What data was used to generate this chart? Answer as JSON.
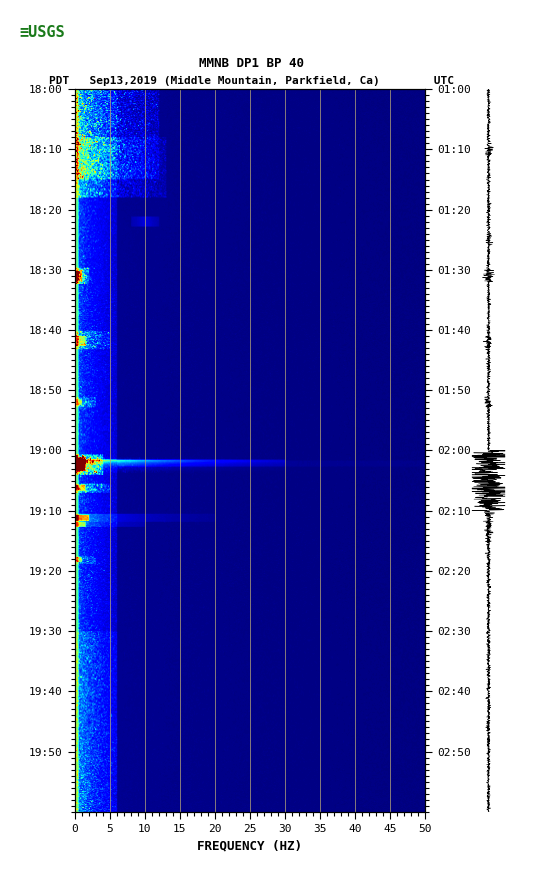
{
  "title_line1": "MMNB DP1 BP 40",
  "title_line2": "PDT   Sep13,2019 (Middle Mountain, Parkfield, Ca)        UTC",
  "xlabel": "FREQUENCY (HZ)",
  "xmin": 0,
  "xmax": 50,
  "xticks": [
    0,
    5,
    10,
    15,
    20,
    25,
    30,
    35,
    40,
    45,
    50
  ],
  "left_time_labels": [
    "18:00",
    "18:10",
    "18:20",
    "18:30",
    "18:40",
    "18:50",
    "19:00",
    "19:10",
    "19:20",
    "19:30",
    "19:40",
    "19:50"
  ],
  "right_time_labels": [
    "01:00",
    "01:10",
    "01:20",
    "01:30",
    "01:40",
    "01:50",
    "02:00",
    "02:10",
    "02:20",
    "02:30",
    "02:40",
    "02:50"
  ],
  "time_label_minutes": [
    0,
    10,
    20,
    30,
    40,
    50,
    60,
    70,
    80,
    90,
    100,
    110
  ],
  "grid_freq_lines": [
    5,
    10,
    15,
    20,
    25,
    30,
    35,
    40,
    45
  ],
  "background_color": "#ffffff",
  "fig_width": 5.52,
  "fig_height": 8.92
}
